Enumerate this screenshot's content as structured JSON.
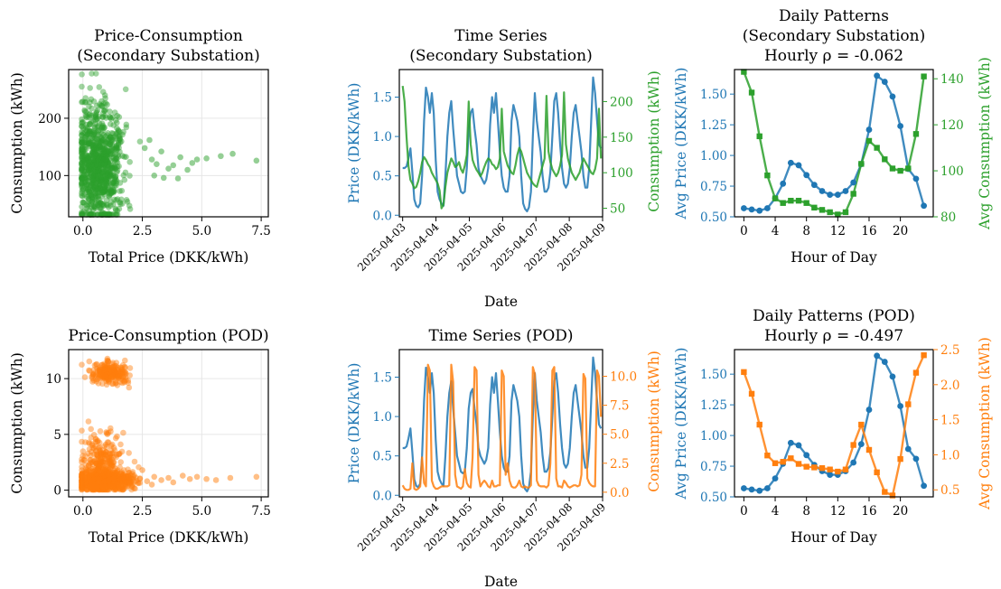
{
  "colors": {
    "price": "#1f77b4",
    "secondary": "#2ca02c",
    "pod": "#ff7f0e",
    "grid": "#e6e6e6"
  },
  "chart_data": [
    {
      "id": "scatter-secondary",
      "type": "scatter",
      "title": [
        "Price-Consumption",
        "(Secondary Substation)"
      ],
      "xlabel": "Total Price (DKK/kWh)",
      "ylabel": "Consumption (kWh)",
      "xlim": [
        -0.6,
        7.8
      ],
      "ylim": [
        28,
        285
      ],
      "xticks": [
        0.0,
        2.5,
        5.0,
        7.5
      ],
      "xtick_labels": [
        "0.0",
        "2.5",
        "5.0",
        "7.5"
      ],
      "yticks": [
        100,
        200
      ],
      "ytick_labels": [
        "100",
        "200"
      ],
      "grid": true,
      "cloud": {
        "x_center": 0.7,
        "x_spread": 0.5,
        "y_center": 118,
        "y_spread": 50,
        "y_min": 32,
        "y_max": 278,
        "n": 900
      },
      "outliers": [
        [
          2.6,
          148
        ],
        [
          2.9,
          128
        ],
        [
          3.1,
          120
        ],
        [
          3.3,
          142
        ],
        [
          3.6,
          112
        ],
        [
          3.8,
          118
        ],
        [
          4.1,
          132
        ],
        [
          4.4,
          110
        ],
        [
          4.8,
          128
        ],
        [
          5.2,
          130
        ],
        [
          5.8,
          134
        ],
        [
          6.3,
          138
        ],
        [
          7.3,
          126
        ],
        [
          3.0,
          100
        ],
        [
          3.4,
          96
        ],
        [
          2.8,
          162
        ],
        [
          4.0,
          95
        ],
        [
          4.6,
          122
        ]
      ]
    },
    {
      "id": "ts-secondary",
      "type": "line",
      "title": [
        "Time Series",
        "(Secondary Substation)"
      ],
      "xlabel": "Date",
      "ylabel": "Price (DKK/kWh)",
      "ylabel_right": "Consumption (kWh)",
      "x_dates": [
        "2025-04-03",
        "2025-04-04",
        "2025-04-05",
        "2025-04-06",
        "2025-04-07",
        "2025-04-08",
        "2025-04-09"
      ],
      "xlim_days": [
        -0.1,
        6.0
      ],
      "ylim": [
        -0.02,
        1.85
      ],
      "yticks": [
        0.0,
        0.5,
        1.0,
        1.5
      ],
      "ytick_labels": [
        "0.0",
        "0.5",
        "1.0",
        "1.5"
      ],
      "ylim_right": [
        38,
        245
      ],
      "yticks_right": [
        50,
        100,
        150,
        200
      ],
      "ytick_labels_right": [
        "50",
        "100",
        "150",
        "200"
      ],
      "price_series": [
        0.6,
        0.6,
        0.62,
        0.72,
        0.85,
        0.55,
        0.2,
        0.12,
        0.1,
        0.15,
        0.5,
        1.2,
        1.62,
        1.5,
        1.3,
        1.55,
        1.3,
        0.7,
        0.3,
        0.2,
        0.15,
        0.12,
        0.5,
        1.0,
        1.3,
        1.45,
        1.1,
        0.8,
        0.5,
        0.4,
        0.3,
        0.28,
        0.3,
        0.6,
        1.1,
        1.3,
        1.35,
        1.1,
        0.9,
        0.6,
        0.5,
        0.45,
        0.4,
        0.45,
        0.6,
        1.15,
        1.5,
        1.3,
        1.55,
        1.2,
        0.8,
        0.5,
        0.35,
        0.3,
        0.3,
        0.5,
        1.2,
        1.4,
        1.3,
        1.2,
        1.0,
        0.5,
        0.15,
        0.08,
        0.05,
        0.1,
        0.3,
        1.0,
        1.55,
        1.2,
        1.0,
        0.8,
        0.5,
        0.3,
        0.3,
        0.35,
        0.55,
        1.0,
        1.45,
        1.55,
        1.3,
        0.9,
        0.6,
        0.4,
        0.35,
        0.4,
        0.6,
        1.0,
        1.3,
        1.4,
        1.2,
        1.0,
        0.8,
        0.5,
        0.35,
        0.35,
        0.6,
        1.2,
        1.75,
        1.55,
        1.2,
        0.9,
        0.85
      ],
      "consumption_series": [
        222,
        200,
        150,
        110,
        90,
        85,
        78,
        80,
        88,
        100,
        115,
        122,
        118,
        112,
        108,
        100,
        95,
        90,
        85,
        75,
        50,
        55,
        80,
        100,
        110,
        120,
        115,
        108,
        110,
        115,
        105,
        100,
        110,
        125,
        200,
        140,
        118,
        110,
        104,
        100,
        95,
        100,
        108,
        115,
        120,
        118,
        112,
        110,
        105,
        108,
        120,
        190,
        130,
        120,
        110,
        105,
        100,
        98,
        110,
        125,
        135,
        130,
        120,
        110,
        100,
        95,
        90,
        85,
        82,
        80,
        90,
        100,
        110,
        120,
        208,
        130,
        115,
        105,
        100,
        95,
        100,
        110,
        125,
        213,
        140,
        120,
        110,
        100,
        95,
        90,
        95,
        100,
        110,
        120,
        115,
        110,
        105,
        100,
        98,
        105,
        120,
        190,
        120
      ]
    },
    {
      "id": "daily-secondary",
      "type": "line",
      "title": [
        "Daily Patterns",
        "(Secondary Substation)",
        "Hourly ρ = -0.062"
      ],
      "xlabel": "Hour of Day",
      "ylabel": "Avg Price (DKK/kWh)",
      "ylabel_right": "Avg Consumption (kWh)",
      "xlim": [
        -1.2,
        24.2
      ],
      "xticks": [
        0,
        4,
        8,
        12,
        16,
        20
      ],
      "xtick_labels": [
        "0",
        "4",
        "8",
        "12",
        "16",
        "20"
      ],
      "ylim": [
        0.5,
        1.7
      ],
      "yticks": [
        0.5,
        0.75,
        1.0,
        1.25,
        1.5
      ],
      "ytick_labels": [
        "0.50",
        "0.75",
        "1.00",
        "1.25",
        "1.50"
      ],
      "ylim_right": [
        80,
        144
      ],
      "yticks_right": [
        80,
        100,
        120,
        140
      ],
      "ytick_labels_right": [
        "80",
        "100",
        "120",
        "140"
      ],
      "hours": [
        0,
        1,
        2,
        3,
        4,
        5,
        6,
        7,
        8,
        9,
        10,
        11,
        12,
        13,
        14,
        15,
        16,
        17,
        18,
        19,
        20,
        21,
        22,
        23
      ],
      "price": [
        0.57,
        0.56,
        0.55,
        0.57,
        0.65,
        0.77,
        0.94,
        0.92,
        0.84,
        0.76,
        0.71,
        0.68,
        0.68,
        0.71,
        0.78,
        0.93,
        1.21,
        1.65,
        1.6,
        1.48,
        1.24,
        0.89,
        0.81,
        0.59
      ],
      "consumption": [
        143,
        134,
        115,
        98,
        88,
        86,
        87,
        87,
        86,
        84,
        83,
        82,
        81,
        82,
        90,
        103,
        113,
        110,
        105,
        101,
        100,
        101,
        116,
        141
      ]
    },
    {
      "id": "scatter-pod",
      "type": "scatter",
      "title": [
        "Price-Consumption (POD)"
      ],
      "xlabel": "Total Price (DKK/kWh)",
      "ylabel": "Consumption (kWh)",
      "xlim": [
        -0.6,
        7.8
      ],
      "ylim": [
        -0.6,
        12.6
      ],
      "xticks": [
        0.0,
        2.5,
        5.0,
        7.5
      ],
      "xtick_labels": [
        "0.0",
        "2.5",
        "5.0",
        "7.5"
      ],
      "yticks": [
        0,
        5,
        10
      ],
      "ytick_labels": [
        "0",
        "5",
        "10"
      ],
      "grid": true,
      "clusters": [
        {
          "x_center": 0.9,
          "x_spread": 0.6,
          "y_center": 0.8,
          "y_spread": 0.5,
          "y_min": 0.05,
          "y_max": 3.5,
          "n": 600
        },
        {
          "x_center": 0.8,
          "x_spread": 0.5,
          "y_center": 2.5,
          "y_spread": 1.5,
          "y_min": 0.3,
          "y_max": 6.5,
          "n": 250
        },
        {
          "x_center": 1.1,
          "x_spread": 0.4,
          "y_center": 10.5,
          "y_spread": 0.5,
          "y_min": 9.2,
          "y_max": 12.2,
          "n": 220
        }
      ],
      "outliers": [
        [
          2.7,
          0.8
        ],
        [
          3.0,
          1.2
        ],
        [
          3.3,
          0.9
        ],
        [
          3.6,
          1.1
        ],
        [
          4.2,
          1.3
        ],
        [
          4.5,
          1.0
        ],
        [
          4.8,
          1.2
        ],
        [
          5.2,
          1.0
        ],
        [
          5.6,
          0.9
        ],
        [
          6.2,
          1.1
        ],
        [
          7.3,
          1.2
        ],
        [
          2.9,
          0.5
        ],
        [
          3.8,
          0.7
        ],
        [
          2.5,
          1.8
        ]
      ]
    },
    {
      "id": "ts-pod",
      "type": "line",
      "title": [
        "Time Series (POD)"
      ],
      "xlabel": "Date",
      "ylabel": "Price (DKK/kWh)",
      "ylabel_right": "Consumption (kWh)",
      "x_dates": [
        "2025-04-03",
        "2025-04-04",
        "2025-04-05",
        "2025-04-06",
        "2025-04-07",
        "2025-04-08",
        "2025-04-09"
      ],
      "xlim_days": [
        -0.1,
        6.0
      ],
      "ylim": [
        -0.02,
        1.85
      ],
      "yticks": [
        0.0,
        0.5,
        1.0,
        1.5
      ],
      "ytick_labels": [
        "0.0",
        "0.5",
        "1.0",
        "1.5"
      ],
      "ylim_right": [
        -0.4,
        12.3
      ],
      "yticks_right": [
        0.0,
        2.5,
        5.0,
        7.5,
        10.0
      ],
      "ytick_labels_right": [
        "0.0",
        "2.5",
        "5.0",
        "7.5",
        "10.0"
      ],
      "price_series": [
        0.6,
        0.6,
        0.62,
        0.72,
        0.85,
        0.55,
        0.2,
        0.12,
        0.1,
        0.15,
        0.5,
        1.2,
        1.62,
        1.5,
        1.3,
        1.55,
        1.3,
        0.7,
        0.3,
        0.2,
        0.15,
        0.12,
        0.5,
        1.0,
        1.3,
        1.45,
        1.1,
        0.8,
        0.5,
        0.4,
        0.3,
        0.28,
        0.3,
        0.6,
        1.1,
        1.3,
        1.35,
        1.1,
        0.9,
        0.6,
        0.5,
        0.45,
        0.4,
        0.45,
        0.6,
        1.15,
        1.5,
        1.3,
        1.55,
        1.2,
        0.8,
        0.5,
        0.35,
        0.3,
        0.3,
        0.5,
        1.2,
        1.4,
        1.3,
        1.2,
        1.0,
        0.5,
        0.15,
        0.08,
        0.05,
        0.1,
        0.3,
        1.0,
        1.55,
        1.2,
        1.0,
        0.8,
        0.5,
        0.3,
        0.3,
        0.35,
        0.55,
        1.0,
        1.45,
        1.55,
        1.3,
        0.9,
        0.6,
        0.4,
        0.35,
        0.4,
        0.6,
        1.0,
        1.3,
        1.4,
        1.2,
        1.0,
        0.8,
        0.5,
        0.35,
        0.35,
        0.6,
        1.2,
        1.75,
        1.55,
        1.2,
        0.9,
        0.85
      ],
      "consumption_series": [
        0.6,
        0.3,
        0.2,
        0.2,
        0.3,
        2.5,
        0.3,
        0.2,
        0.3,
        0.5,
        3.0,
        0.8,
        0.5,
        11.0,
        10.5,
        1.0,
        0.5,
        0.3,
        0.3,
        0.4,
        0.5,
        0.5,
        0.5,
        0.5,
        0.6,
        11.0,
        9.5,
        1.5,
        0.5,
        0.4,
        0.3,
        0.5,
        2.0,
        0.8,
        0.5,
        0.4,
        3.0,
        10.8,
        10.5,
        1.5,
        0.5,
        0.8,
        1.0,
        0.8,
        0.5,
        0.4,
        1.0,
        0.5,
        0.5,
        0.6,
        0.6,
        10.5,
        10.0,
        1.5,
        2.5,
        1.0,
        0.5,
        0.4,
        0.4,
        0.6,
        1.0,
        0.5,
        0.4,
        0.5,
        0.4,
        0.4,
        0.6,
        10.8,
        10.2,
        1.0,
        0.6,
        0.5,
        0.5,
        0.5,
        0.4,
        0.6,
        2.5,
        10.5,
        10.8,
        1.2,
        0.5,
        0.5,
        0.4,
        1.0,
        0.8,
        0.5,
        0.4,
        0.5,
        0.6,
        0.6,
        0.5,
        0.6,
        1.5,
        10.2,
        9.8,
        1.2,
        0.8,
        0.6,
        0.5,
        0.5,
        10.5,
        10.0,
        6.5
      ]
    },
    {
      "id": "daily-pod",
      "type": "line",
      "title": [
        "Daily Patterns (POD)",
        "Hourly ρ = -0.497"
      ],
      "xlabel": "Hour of Day",
      "ylabel": "Avg Price (DKK/kWh)",
      "ylabel_right": "Avg Consumption (kWh)",
      "xlim": [
        -1.2,
        24.2
      ],
      "xticks": [
        0,
        4,
        8,
        12,
        16,
        20
      ],
      "xtick_labels": [
        "0",
        "4",
        "8",
        "12",
        "16",
        "20"
      ],
      "ylim": [
        0.5,
        1.7
      ],
      "yticks": [
        0.5,
        0.75,
        1.0,
        1.25,
        1.5
      ],
      "ytick_labels": [
        "0.50",
        "0.75",
        "1.00",
        "1.25",
        "1.50"
      ],
      "ylim_right": [
        0.4,
        2.5
      ],
      "yticks_right": [
        0.5,
        1.0,
        1.5,
        2.0,
        2.5
      ],
      "ytick_labels_right": [
        "0.5",
        "1.0",
        "1.5",
        "2.0",
        "2.5"
      ],
      "hours": [
        0,
        1,
        2,
        3,
        4,
        5,
        6,
        7,
        8,
        9,
        10,
        11,
        12,
        13,
        14,
        15,
        16,
        17,
        18,
        19,
        20,
        21,
        22,
        23
      ],
      "price": [
        0.57,
        0.56,
        0.55,
        0.57,
        0.65,
        0.77,
        0.94,
        0.92,
        0.84,
        0.76,
        0.71,
        0.68,
        0.68,
        0.71,
        0.78,
        0.93,
        1.21,
        1.65,
        1.6,
        1.48,
        1.24,
        0.89,
        0.81,
        0.59
      ],
      "consumption": [
        2.18,
        1.87,
        1.43,
        0.99,
        0.88,
        0.9,
        0.95,
        0.87,
        0.83,
        0.82,
        0.81,
        0.79,
        0.76,
        0.79,
        1.14,
        1.43,
        1.07,
        0.75,
        0.47,
        0.42,
        0.94,
        1.72,
        2.17,
        2.42
      ]
    }
  ]
}
